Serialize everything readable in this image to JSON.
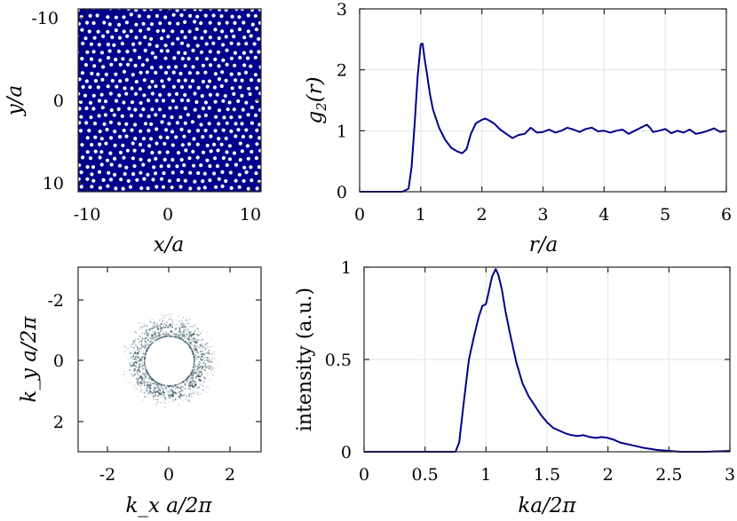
{
  "panels": {
    "real_space": {
      "xlabel": "x/a",
      "ylabel": "y/a",
      "xticks": [
        "-10",
        "0",
        "10"
      ],
      "yticks": [
        "-10",
        "0",
        "10"
      ],
      "background_color": "#00008b",
      "point_color": "#ffffff"
    },
    "reciprocal_space": {
      "xlabel": "k_x a/2π",
      "ylabel": "k_y a/2π",
      "xticks": [
        "-2",
        "0",
        "2"
      ],
      "yticks": [
        "-2",
        "0",
        "2"
      ],
      "intensity_color": "#1f3f4f"
    }
  },
  "chart_data": [
    {
      "id": "g2",
      "type": "line",
      "xlabel": "r/a",
      "ylabel": "g2(r)",
      "xlim": [
        0,
        6
      ],
      "ylim": [
        0,
        3
      ],
      "xticks": [
        "0",
        "1",
        "2",
        "3",
        "4",
        "5",
        "6"
      ],
      "yticks": [
        "0",
        "1",
        "2",
        "3"
      ],
      "grid": true,
      "color": "#00008b",
      "series": [
        {
          "x": [
            0,
            0.7,
            0.8,
            0.85,
            0.9,
            0.95,
            1.0,
            1.03,
            1.06,
            1.1,
            1.15,
            1.2,
            1.3,
            1.4,
            1.5,
            1.6,
            1.68,
            1.75,
            1.82,
            1.9,
            1.95,
            2.0,
            2.05,
            2.1,
            2.15,
            2.2,
            2.3,
            2.4,
            2.5,
            2.6,
            2.7,
            2.8,
            2.9,
            3.0,
            3.1,
            3.2,
            3.3,
            3.4,
            3.5,
            3.6,
            3.7,
            3.8,
            3.9,
            4.0,
            4.1,
            4.2,
            4.3,
            4.4,
            4.5,
            4.6,
            4.7,
            4.75,
            4.8,
            4.9,
            5.0,
            5.1,
            5.2,
            5.3,
            5.4,
            5.5,
            5.6,
            5.7,
            5.8,
            5.9,
            6.0
          ],
          "y": [
            0,
            0,
            0.05,
            0.4,
            1.1,
            1.9,
            2.42,
            2.43,
            2.2,
            1.95,
            1.6,
            1.35,
            1.05,
            0.85,
            0.72,
            0.66,
            0.63,
            0.7,
            0.95,
            1.12,
            1.15,
            1.18,
            1.2,
            1.18,
            1.15,
            1.12,
            1.02,
            0.95,
            0.88,
            0.93,
            0.95,
            1.05,
            0.97,
            0.98,
            1.02,
            0.97,
            1.0,
            1.05,
            1.02,
            0.98,
            1.03,
            1.05,
            0.99,
            1.0,
            0.97,
            1.0,
            1.02,
            0.95,
            1.0,
            1.05,
            1.1,
            1.05,
            0.98,
            1.0,
            1.03,
            0.96,
            1.0,
            0.97,
            1.02,
            0.95,
            0.97,
            1.0,
            1.04,
            0.98,
            1.0
          ]
        }
      ]
    },
    {
      "id": "intensity",
      "type": "line",
      "xlabel": "ka/2π",
      "ylabel": "intensity (a.u.)",
      "xlim": [
        0,
        3
      ],
      "ylim": [
        0,
        1
      ],
      "xticks": [
        "0",
        "0.5",
        "1",
        "1.5",
        "2",
        "2.5",
        "3"
      ],
      "yticks": [
        "0",
        "0.5",
        "1"
      ],
      "grid": true,
      "color": "#00008b",
      "series": [
        {
          "x": [
            0,
            0.75,
            0.78,
            0.82,
            0.86,
            0.9,
            0.94,
            0.97,
            1.0,
            1.02,
            1.05,
            1.08,
            1.1,
            1.13,
            1.16,
            1.2,
            1.25,
            1.3,
            1.35,
            1.4,
            1.45,
            1.5,
            1.55,
            1.6,
            1.65,
            1.7,
            1.75,
            1.8,
            1.85,
            1.9,
            1.95,
            2.0,
            2.05,
            2.1,
            2.2,
            2.3,
            2.4,
            2.5,
            2.6,
            2.8,
            3.0
          ],
          "y": [
            0,
            0,
            0.05,
            0.28,
            0.5,
            0.62,
            0.73,
            0.79,
            0.8,
            0.86,
            0.95,
            0.99,
            0.96,
            0.88,
            0.76,
            0.63,
            0.48,
            0.37,
            0.3,
            0.25,
            0.2,
            0.16,
            0.13,
            0.115,
            0.1,
            0.09,
            0.085,
            0.09,
            0.08,
            0.075,
            0.08,
            0.075,
            0.065,
            0.05,
            0.035,
            0.02,
            0.01,
            0.005,
            0.0,
            0.0,
            0.005
          ]
        }
      ]
    }
  ]
}
